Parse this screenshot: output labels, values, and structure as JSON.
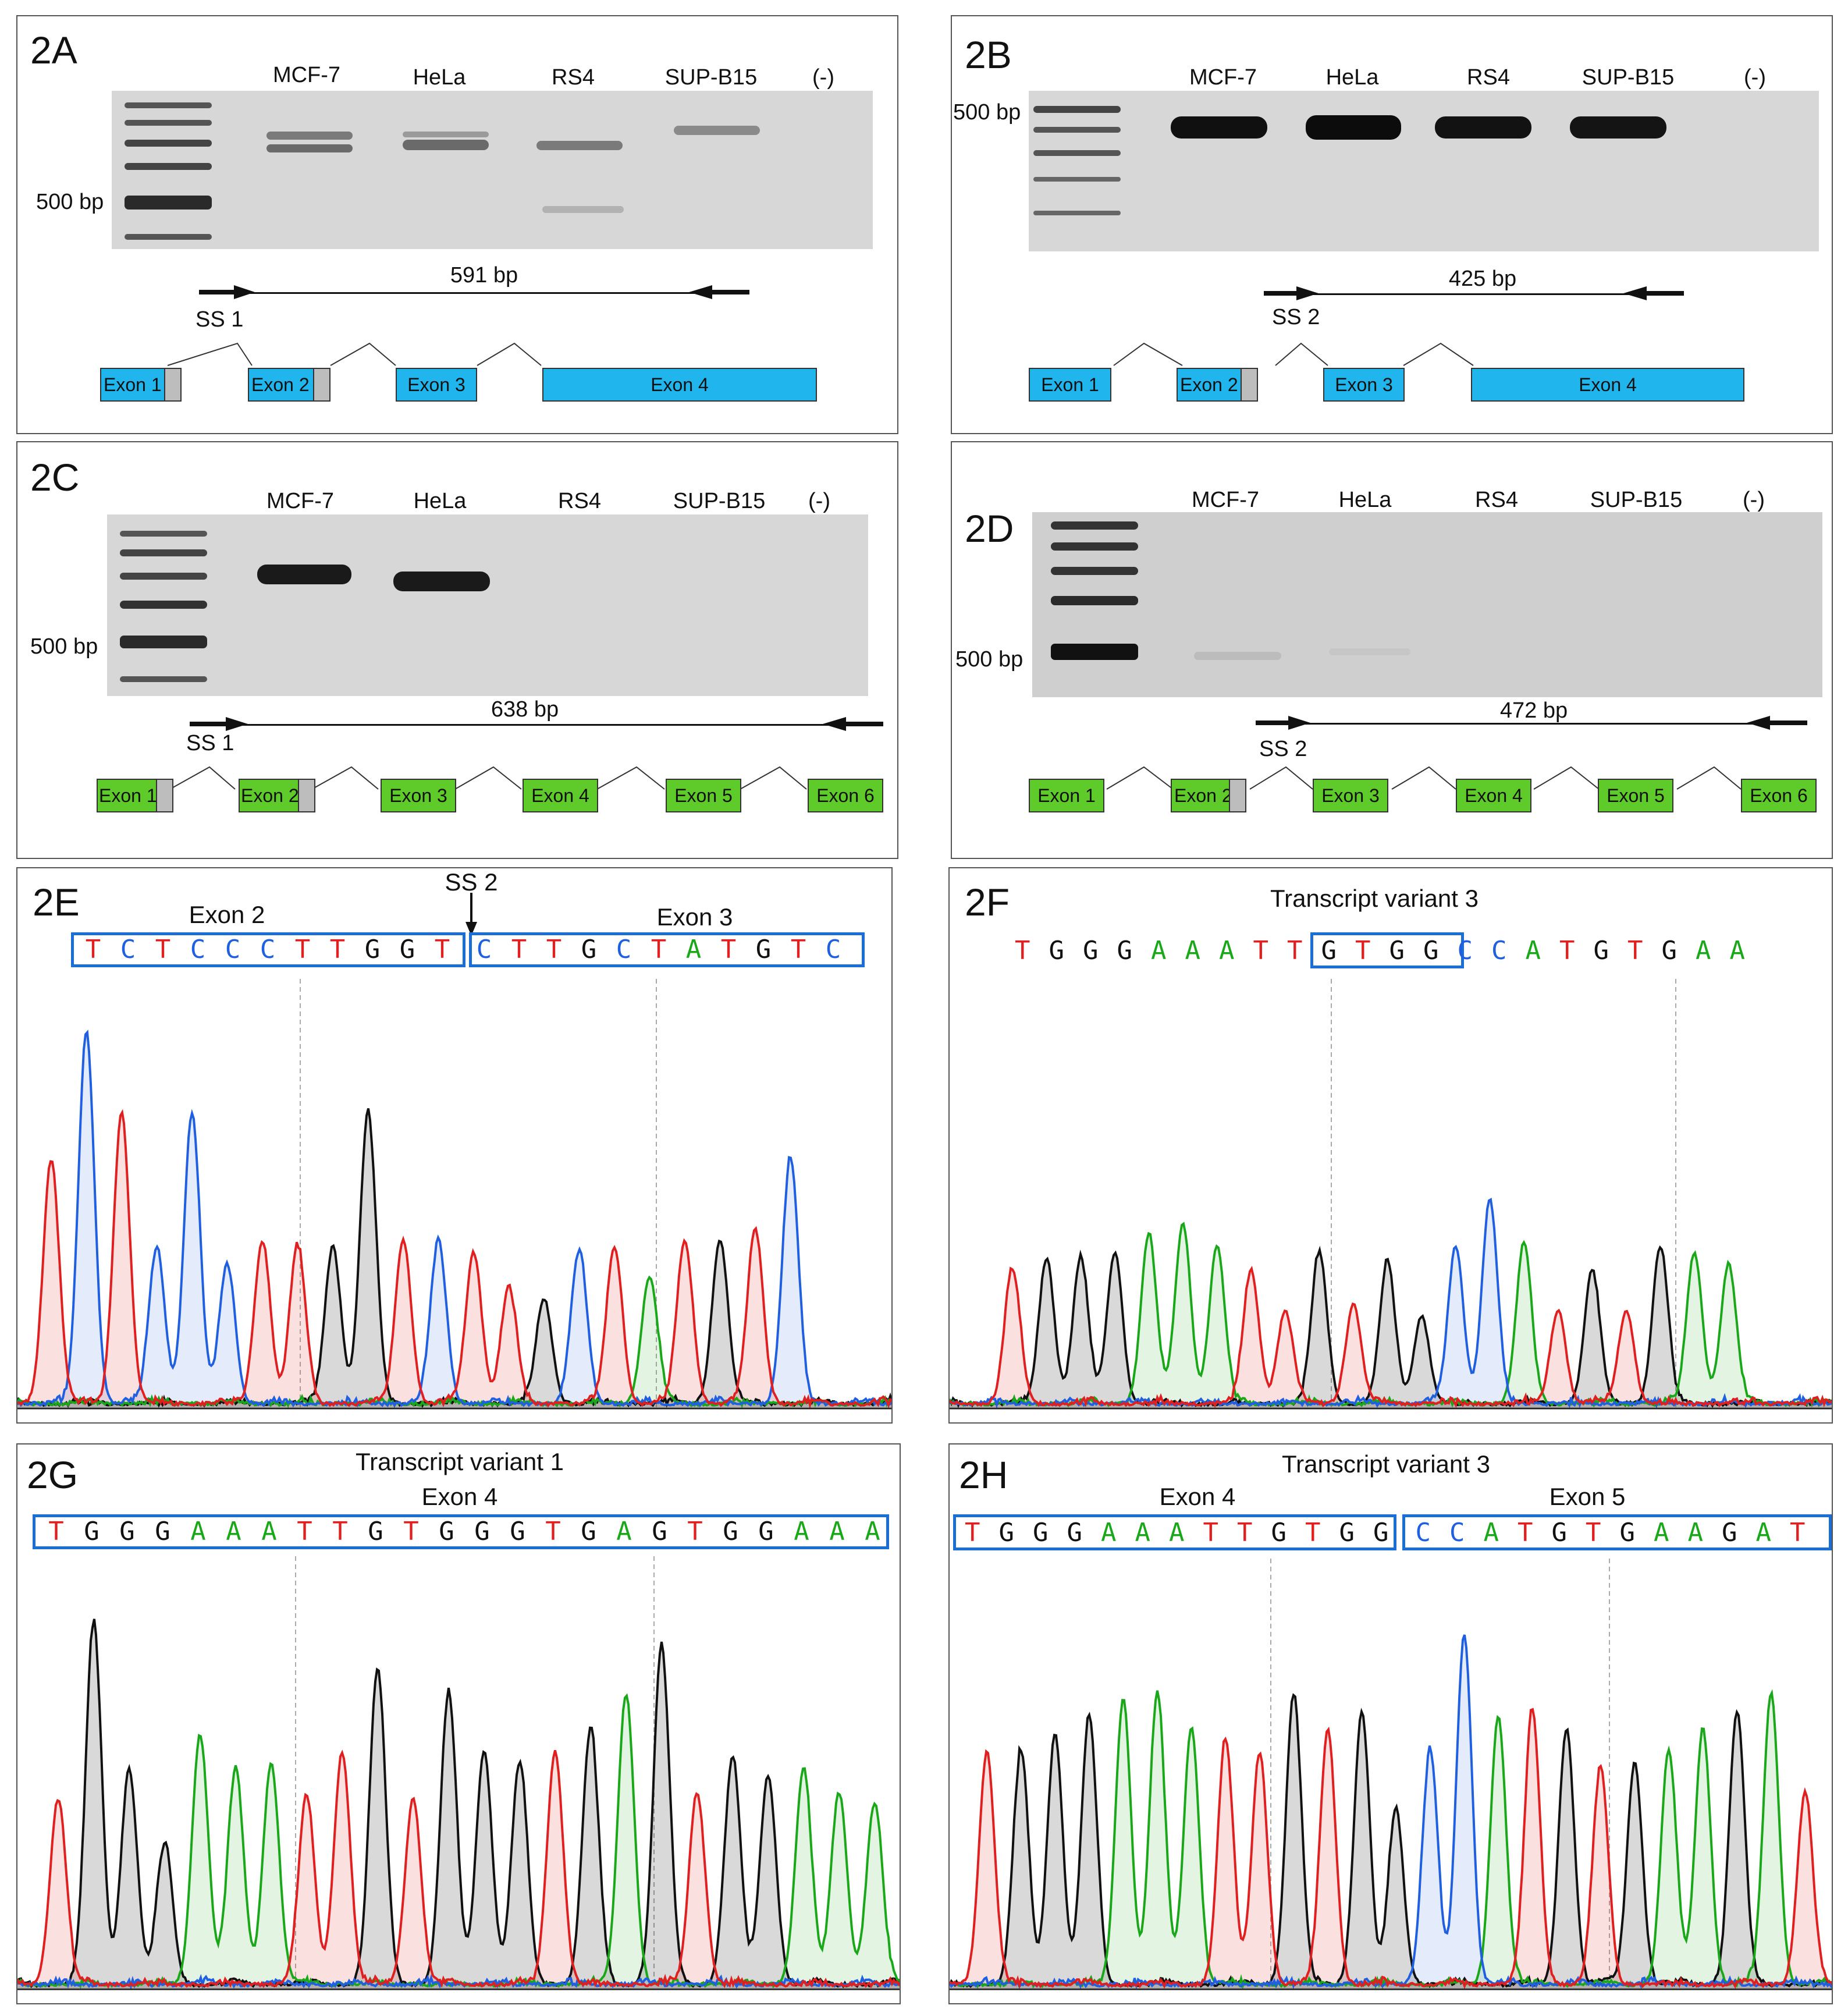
{
  "colors": {
    "A": "#1aa81a",
    "C": "#2060e0",
    "G": "#111111",
    "T": "#e02020",
    "exon_blue": "#21b5ee",
    "exon_green": "#5ecb2a",
    "box_blue": "#1b6ed6"
  },
  "panels": {
    "A": {
      "label": "2A",
      "lanes": [
        "MCF-7",
        "HeLa",
        "RS4",
        "SUP-B15",
        "(-)"
      ],
      "ladder": "500 bp",
      "size": "591 bp",
      "ss": "SS 1",
      "exons": [
        "Exon 1",
        "Exon 2",
        "Exon 3",
        "Exon 4"
      ]
    },
    "B": {
      "label": "2B",
      "lanes": [
        "MCF-7",
        "HeLa",
        "RS4",
        "SUP-B15",
        "(-)"
      ],
      "ladder": "500 bp",
      "size": "425 bp",
      "ss": "SS 2",
      "exons": [
        "Exon 1",
        "Exon 2",
        "Exon 3",
        "Exon 4"
      ]
    },
    "C": {
      "label": "2C",
      "lanes": [
        "MCF-7",
        "HeLa",
        "RS4",
        "SUP-B15",
        "(-)"
      ],
      "ladder": "500 bp",
      "size": "638 bp",
      "ss": "SS 1",
      "exons": [
        "Exon 1",
        "Exon 2",
        "Exon 3",
        "Exon 4",
        "Exon 5",
        "Exon 6"
      ]
    },
    "D": {
      "label": "2D",
      "lanes": [
        "MCF-7",
        "HeLa",
        "RS4",
        "SUP-B15",
        "(-)"
      ],
      "ladder": "500 bp",
      "size": "472 bp",
      "ss": "SS 2",
      "exons": [
        "Exon 1",
        "Exon 2",
        "Exon 3",
        "Exon 4",
        "Exon 5",
        "Exon 6"
      ]
    },
    "E": {
      "label": "2E",
      "ss": "SS 2",
      "left_exon": "Exon 2",
      "right_exon": "Exon 3",
      "seq_left": "TCTCCCTTGGT",
      "seq_right": "CTTGCTATGTC"
    },
    "F": {
      "label": "2F",
      "title": "Transcript variant 3",
      "seq": "TGGGAAATTGTGGCCATGTGAA"
    },
    "G": {
      "label": "2G",
      "title": "Transcript variant 1",
      "exon": "Exon 4",
      "seq": "TGGGAAATTGTGGGTGAGTGGAAA"
    },
    "H": {
      "label": "2H",
      "title": "Transcript variant 3",
      "left_exon": "Exon 4",
      "right_exon": "Exon 5",
      "seq_left": "TGGGAAATTGTGG",
      "seq_right": "CCATGTGAAGAT"
    }
  }
}
